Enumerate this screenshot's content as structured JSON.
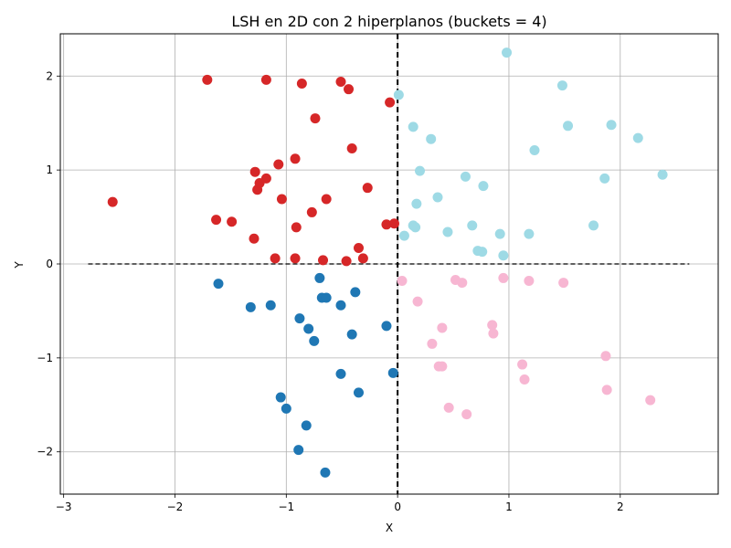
{
  "chart_data": {
    "type": "scatter",
    "title": "LSH en 2D con 2 hiperplanos (buckets = 4)",
    "xlabel": "X",
    "ylabel": "Y",
    "xlim": [
      -3.03,
      2.88
    ],
    "ylim": [
      -2.45,
      2.45
    ],
    "xticks": [
      -3,
      -2,
      -1,
      0,
      1,
      2
    ],
    "yticks": [
      -2,
      -1,
      0,
      1,
      2
    ],
    "xtick_labels": [
      "−3",
      "−2",
      "−1",
      "0",
      "1",
      "2"
    ],
    "ytick_labels": [
      "−2",
      "−1",
      "0",
      "1",
      "2"
    ],
    "grid": true,
    "hyperplanes": [
      {
        "orientation": "vertical",
        "x": 0,
        "color": "#000000",
        "style": "dashed-thick"
      },
      {
        "orientation": "horizontal",
        "y": 0,
        "x_range": [
          -2.78,
          2.62
        ],
        "color": "#000000",
        "style": "dashed"
      }
    ],
    "series": [
      {
        "color": "#d62728",
        "points": [
          [
            -2.56,
            0.66
          ],
          [
            -1.71,
            1.96
          ],
          [
            -1.63,
            0.47
          ],
          [
            -1.49,
            0.45
          ],
          [
            -1.29,
            0.27
          ],
          [
            -1.28,
            0.98
          ],
          [
            -1.26,
            0.79
          ],
          [
            -1.24,
            0.86
          ],
          [
            -1.18,
            0.91
          ],
          [
            -1.18,
            1.96
          ],
          [
            -1.1,
            0.06
          ],
          [
            -1.07,
            1.06
          ],
          [
            -1.04,
            0.69
          ],
          [
            -0.92,
            1.12
          ],
          [
            -0.91,
            0.39
          ],
          [
            -0.92,
            0.06
          ],
          [
            -0.86,
            1.92
          ],
          [
            -0.77,
            0.55
          ],
          [
            -0.74,
            1.55
          ],
          [
            -0.67,
            0.04
          ],
          [
            -0.64,
            0.69
          ],
          [
            -0.51,
            1.94
          ],
          [
            -0.46,
            0.03
          ],
          [
            -0.44,
            1.86
          ],
          [
            -0.41,
            1.23
          ],
          [
            -0.35,
            0.17
          ],
          [
            -0.31,
            0.06
          ],
          [
            -0.27,
            0.81
          ],
          [
            -0.07,
            1.72
          ],
          [
            -0.1,
            0.42
          ],
          [
            -0.03,
            0.43
          ]
        ]
      },
      {
        "color": "#9edae5",
        "points": [
          [
            0.01,
            1.8
          ],
          [
            0.06,
            0.3
          ],
          [
            0.14,
            0.41
          ],
          [
            0.14,
            1.46
          ],
          [
            0.16,
            0.39
          ],
          [
            0.17,
            0.64
          ],
          [
            0.2,
            0.99
          ],
          [
            0.3,
            1.33
          ],
          [
            0.36,
            0.71
          ],
          [
            0.45,
            0.34
          ],
          [
            0.61,
            0.93
          ],
          [
            0.67,
            0.41
          ],
          [
            0.72,
            0.14
          ],
          [
            0.76,
            0.13
          ],
          [
            0.77,
            0.83
          ],
          [
            0.92,
            0.32
          ],
          [
            0.95,
            0.09
          ],
          [
            0.98,
            2.25
          ],
          [
            1.18,
            0.32
          ],
          [
            1.23,
            1.21
          ],
          [
            1.48,
            1.9
          ],
          [
            1.53,
            1.47
          ],
          [
            1.76,
            0.41
          ],
          [
            1.86,
            0.91
          ],
          [
            1.92,
            1.48
          ],
          [
            2.16,
            1.34
          ],
          [
            2.38,
            0.95
          ]
        ]
      },
      {
        "color": "#1f77b4",
        "points": [
          [
            -1.61,
            -0.21
          ],
          [
            -1.32,
            -0.46
          ],
          [
            -1.14,
            -0.44
          ],
          [
            -1.05,
            -1.42
          ],
          [
            -1.0,
            -1.54
          ],
          [
            -0.88,
            -0.58
          ],
          [
            -0.8,
            -0.69
          ],
          [
            -0.75,
            -0.82
          ],
          [
            -0.7,
            -0.15
          ],
          [
            -0.68,
            -0.36
          ],
          [
            -0.64,
            -0.36
          ],
          [
            -0.51,
            -0.44
          ],
          [
            -0.41,
            -0.75
          ],
          [
            -0.38,
            -0.3
          ],
          [
            -0.82,
            -1.72
          ],
          [
            -0.89,
            -1.98
          ],
          [
            -0.65,
            -2.22
          ],
          [
            -0.51,
            -1.17
          ],
          [
            -0.35,
            -1.37
          ],
          [
            -0.1,
            -0.66
          ],
          [
            -0.04,
            -1.16
          ]
        ]
      },
      {
        "color": "#f7b6d2",
        "points": [
          [
            0.04,
            -0.18
          ],
          [
            0.18,
            -0.4
          ],
          [
            0.31,
            -0.85
          ],
          [
            0.37,
            -1.09
          ],
          [
            0.4,
            -1.09
          ],
          [
            0.4,
            -0.68
          ],
          [
            0.46,
            -1.53
          ],
          [
            0.52,
            -0.17
          ],
          [
            0.58,
            -0.2
          ],
          [
            0.62,
            -1.6
          ],
          [
            0.85,
            -0.65
          ],
          [
            0.86,
            -0.74
          ],
          [
            0.95,
            -0.15
          ],
          [
            1.12,
            -1.07
          ],
          [
            1.14,
            -1.23
          ],
          [
            1.18,
            -0.18
          ],
          [
            1.49,
            -0.2
          ],
          [
            1.87,
            -0.98
          ],
          [
            1.88,
            -1.34
          ],
          [
            2.27,
            -1.45
          ]
        ]
      }
    ]
  }
}
